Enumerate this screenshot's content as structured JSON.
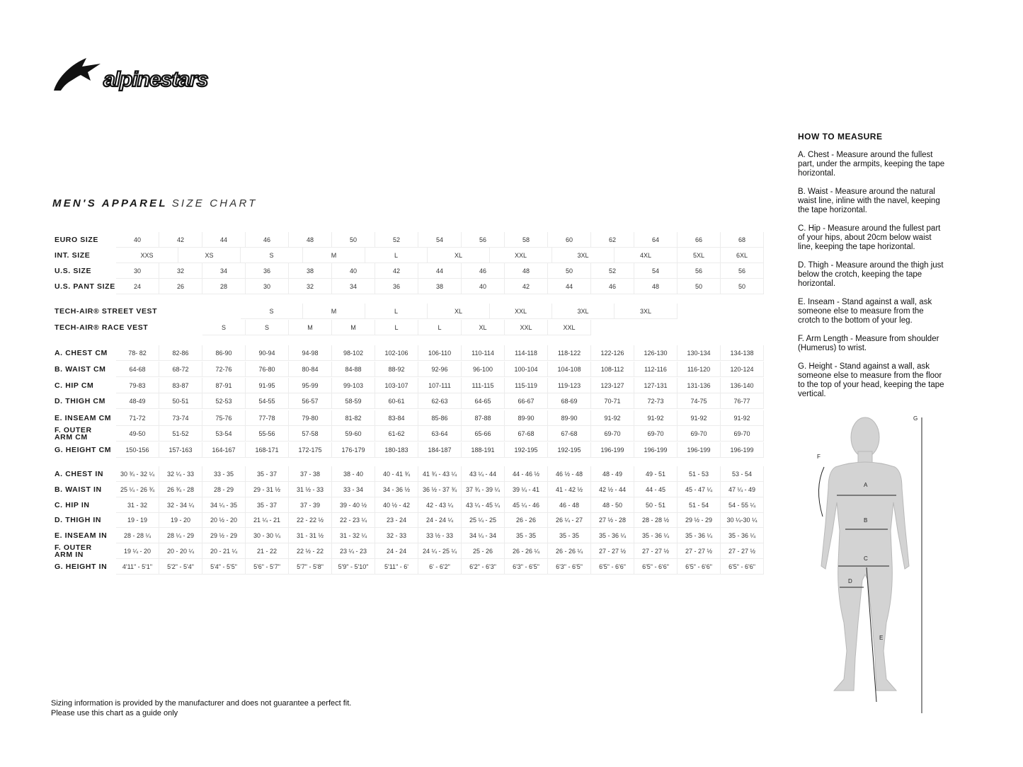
{
  "brand": {
    "logo_text": "alpinestars"
  },
  "title": {
    "bold": "MEN'S APPAREL",
    "light": "SIZE CHART"
  },
  "size_rows": [
    {
      "label": "EURO SIZE",
      "values": [
        "40",
        "42",
        "44",
        "46",
        "48",
        "50",
        "52",
        "54",
        "56",
        "58",
        "60",
        "62",
        "64",
        "66",
        "68"
      ]
    },
    {
      "label": "INT. SIZE",
      "grouped": true,
      "values": [
        "XXS",
        "XS",
        "S",
        "M",
        "L",
        "XL",
        "XXL",
        "3XL",
        "4XL",
        "5XL",
        "6XL"
      ]
    },
    {
      "label": "U.S. SIZE",
      "values": [
        "30",
        "32",
        "34",
        "36",
        "38",
        "40",
        "42",
        "44",
        "46",
        "48",
        "50",
        "52",
        "54",
        "56",
        "56"
      ]
    },
    {
      "label": "U.S. PANT SIZE",
      "values": [
        "24",
        "26",
        "28",
        "30",
        "32",
        "34",
        "36",
        "38",
        "40",
        "42",
        "44",
        "46",
        "48",
        "50",
        "50"
      ]
    }
  ],
  "vest_rows": [
    {
      "label": "TECH-AIR® STREET VEST",
      "values": [
        "S",
        "M",
        "L",
        "XL",
        "XXL",
        "3XL",
        "3XL"
      ]
    },
    {
      "label": "TECH-AIR® RACE VEST",
      "values": [
        "S",
        "S",
        "M",
        "M",
        "L",
        "L",
        "XL",
        "XXL",
        "XXL"
      ]
    }
  ],
  "cm_rows": [
    {
      "label": "A. CHEST CM",
      "values": [
        "78- 82",
        "82-86",
        "86-90",
        "90-94",
        "94-98",
        "98-102",
        "102-106",
        "106-110",
        "110-114",
        "114-118",
        "118-122",
        "122-126",
        "126-130",
        "130-134",
        "134-138"
      ]
    },
    {
      "label": "B. WAIST CM",
      "values": [
        "64-68",
        "68-72",
        "72-76",
        "76-80",
        "80-84",
        "84-88",
        "88-92",
        "92-96",
        "96-100",
        "100-104",
        "104-108",
        "108-112",
        "112-116",
        "116-120",
        "120-124"
      ]
    },
    {
      "label": "C. HIP CM",
      "values": [
        "79-83",
        "83-87",
        "87-91",
        "91-95",
        "95-99",
        "99-103",
        "103-107",
        "107-111",
        "111-115",
        "115-119",
        "119-123",
        "123-127",
        "127-131",
        "131-136",
        "136-140"
      ]
    },
    {
      "label": "D. THIGH CM",
      "values": [
        "48-49",
        "50-51",
        "52-53",
        "54-55",
        "56-57",
        "58-59",
        "60-61",
        "62-63",
        "64-65",
        "66-67",
        "68-69",
        "70-71",
        "72-73",
        "74-75",
        "76-77"
      ]
    },
    {
      "label": "E. INSEAM CM",
      "values": [
        "71-72",
        "73-74",
        "75-76",
        "77-78",
        "79-80",
        "81-82",
        "83-84",
        "85-86",
        "87-88",
        "89-90",
        "89-90",
        "91-92",
        "91-92",
        "91-92",
        "91-92"
      ]
    },
    {
      "label": "F. OUTER ARM CM",
      "values": [
        "49-50",
        "51-52",
        "53-54",
        "55-56",
        "57-58",
        "59-60",
        "61-62",
        "63-64",
        "65-66",
        "67-68",
        "67-68",
        "69-70",
        "69-70",
        "69-70",
        "69-70"
      ]
    },
    {
      "label": "G. HEIGHT CM",
      "values": [
        "150-156",
        "157-163",
        "164-167",
        "168-171",
        "172-175",
        "176-179",
        "180-183",
        "184-187",
        "188-191",
        "192-195",
        "192-195",
        "196-199",
        "196-199",
        "196-199",
        "196-199"
      ]
    }
  ],
  "in_rows": [
    {
      "label": "A. CHEST IN",
      "values": [
        "30 ¾ - 32 ¼",
        "32 ¼ - 33",
        "33  - 35",
        "35  - 37",
        "37 - 38",
        "38  - 40",
        "40  - 41 ¾",
        "41 ¾ - 43 ¼",
        "43 ¼ - 44",
        "44  - 46 ½",
        "46 ½ - 48",
        "48 - 49",
        "49  - 51",
        "51  - 53",
        "53  - 54"
      ]
    },
    {
      "label": "B. WAIST IN",
      "values": [
        "25 ¼ - 26 ¾",
        "26 ¾ - 28",
        "28  - 29",
        "29  - 31 ½",
        "31 ½ - 33",
        "33  - 34",
        "34  - 36 ½",
        "36 ½ - 37 ¾",
        "37 ¾ - 39 ¼",
        "39 ¼ - 41",
        "41 - 42 ½",
        "42 ½ - 44",
        "44  - 45",
        "45  - 47 ¼",
        "47 ¼ - 49"
      ]
    },
    {
      "label": "C. HIP IN",
      "values": [
        "31  - 32",
        "32  - 34 ¼",
        "34 ¼ - 35",
        "35  - 37",
        "37  - 39",
        "39 - 40 ½",
        "40 ½ - 42",
        "42  - 43 ¼",
        "43 ¼ - 45 ¼",
        "45 ¼ - 46",
        "46  - 48",
        "48  - 50",
        "50 - 51",
        "51  - 54",
        "54  - 55 ¼"
      ]
    },
    {
      "label": "D. THIGH IN",
      "values": [
        "19  - 19",
        "19  - 20",
        "20 ½ - 20",
        "21 ¼ - 21",
        "22 - 22 ½",
        "22  - 23 ¼",
        "23  - 24",
        "24  - 24 ¼",
        "25 ¼ - 25",
        "26 - 26",
        "26 ¼ - 27",
        "27 ½ - 28",
        "28  - 28 ½",
        "29 ½ - 29",
        "30 ¼-30 ¼"
      ]
    },
    {
      "label": "E. INSEAM IN",
      "values": [
        "28 - 28 ¼",
        "28 ¼ - 29",
        "29 ½ - 29",
        "30  - 30 ¼",
        "31  - 31 ½",
        "31  - 32 ¼",
        "32  - 33",
        "33 ½ - 33",
        "34 ¼ - 34",
        "35 - 35",
        "35 - 35",
        "35  - 36 ¼",
        "35  - 36 ¼",
        "35  - 36 ¼",
        "35  - 36 ¼"
      ]
    },
    {
      "label": "F. OUTER ARM IN",
      "values": [
        "19 ¼ - 20",
        "20  - 20 ¼",
        "20  - 21 ¼",
        "21  - 22",
        "22 ½ - 22",
        "23 ¼ - 23",
        "24 - 24",
        "24 ¼ - 25 ¼",
        "25  - 26",
        "26  - 26 ¼",
        "26  - 26 ¼",
        "27  - 27 ½",
        "27  - 27 ½",
        "27  - 27 ½",
        "27  - 27 ½"
      ]
    },
    {
      "label": "G. HEIGHT IN",
      "values": [
        "4'11\" - 5'1\"",
        "5'2\" - 5'4\"",
        "5'4\" - 5'5\"",
        "5'6\" - 5'7\"",
        "5'7\" - 5'8\"",
        "5'9\" - 5'10\"",
        "5'11\" - 6'",
        "6' - 6'2\"",
        "6'2\" - 6'3\"",
        "6'3\" - 6'5\"",
        "6'3\" - 6'5\"",
        "6'5\" - 6'6\"",
        "6'5\" - 6'6\"",
        "6'5\" - 6'6\"",
        "6'5\" - 6'6\""
      ]
    }
  ],
  "how_to_measure": {
    "heading": "HOW TO MEASURE",
    "items": [
      "A. Chest - Measure around the fullest part, under the armpits, keeping the tape horizontal.",
      "B. Waist - Measure around the natural waist line, inline with the navel, keeping the tape horizontal.",
      "C. Hip - Measure around the fullest part of your hips, about 20cm below waist line, keeping the tape horizontal.",
      "D. Thigh - Measure around the thigh just below the crotch, keeping the tape horizontal.",
      "E. Inseam - Stand against a wall, ask someone else to measure from the crotch to the bottom of your leg.",
      "F. Arm Length - Measure from shoulder (Humerus) to wrist.",
      "G. Height - Stand against a wall, ask someone else to measure from the floor to the top of your head, keeping the tape vertical."
    ]
  },
  "figure_labels": {
    "a": "A",
    "b": "B",
    "c": "C",
    "d": "D",
    "e": "E",
    "f": "F",
    "g": "G"
  },
  "disclaimer": {
    "line1": "Sizing information is provided by the manufacturer and does not guarantee a perfect fit.",
    "line2": "Please use this chart as a guide only"
  }
}
